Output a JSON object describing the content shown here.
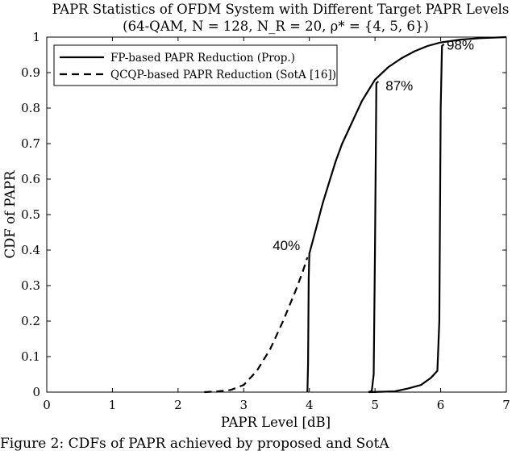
{
  "chart_data": {
    "type": "line",
    "title": "PAPR Statistics of OFDM System with Different Target PAPR Levels",
    "subtitle": "(64-QAM, N = 128, N_R = 20, ρ* = {4, 5, 6})",
    "xlabel": "PAPR Level [dB]",
    "ylabel": "CDF of PAPR",
    "xlim": [
      0,
      7
    ],
    "ylim": [
      0,
      1
    ],
    "xticks": [
      "0",
      "1",
      "2",
      "3",
      "4",
      "5",
      "6",
      "7"
    ],
    "yticks": [
      "0",
      "0.1",
      "0.2",
      "0.3",
      "0.4",
      "0.5",
      "0.6",
      "0.7",
      "0.8",
      "0.9",
      "1"
    ],
    "grid": false,
    "legend_position": "top-left",
    "series": [
      {
        "name": "FP-based PAPR Reduction (Prop.)",
        "style": "solid",
        "color": "#000000",
        "curves": [
          [
            [
              3.97,
              0
            ],
            [
              3.98,
              0.08
            ],
            [
              3.99,
              0.32
            ],
            [
              4.0,
              0.39
            ],
            [
              4.1,
              0.46
            ],
            [
              4.2,
              0.53
            ],
            [
              4.3,
              0.59
            ],
            [
              4.4,
              0.65
            ],
            [
              4.5,
              0.7
            ],
            [
              4.6,
              0.74
            ],
            [
              4.7,
              0.78
            ],
            [
              4.8,
              0.82
            ],
            [
              4.9,
              0.85
            ],
            [
              5.0,
              0.88
            ],
            [
              5.2,
              0.915
            ],
            [
              5.4,
              0.94
            ],
            [
              5.6,
              0.96
            ],
            [
              5.8,
              0.975
            ],
            [
              6.0,
              0.985
            ],
            [
              6.3,
              0.993
            ],
            [
              6.6,
              0.997
            ],
            [
              7.0,
              1.0
            ]
          ],
          [
            [
              4.9,
              0
            ],
            [
              4.95,
              0.003
            ],
            [
              4.98,
              0.05
            ],
            [
              5.0,
              0.4
            ],
            [
              5.02,
              0.87
            ],
            [
              5.05,
              0.875
            ]
          ],
          [
            [
              4.9,
              0
            ],
            [
              5.3,
              0.002
            ],
            [
              5.5,
              0.01
            ],
            [
              5.7,
              0.02
            ],
            [
              5.85,
              0.04
            ],
            [
              5.95,
              0.06
            ],
            [
              5.98,
              0.2
            ],
            [
              6.0,
              0.8
            ],
            [
              6.02,
              0.975
            ],
            [
              6.05,
              0.98
            ]
          ]
        ]
      },
      {
        "name": "QCQP-based PAPR Reduction (SotA [16])",
        "style": "dashed",
        "color": "#000000",
        "curves": [
          [
            [
              2.4,
              0
            ],
            [
              2.6,
              0.002
            ],
            [
              2.8,
              0.006
            ],
            [
              3.0,
              0.02
            ],
            [
              3.2,
              0.06
            ],
            [
              3.4,
              0.12
            ],
            [
              3.6,
              0.2
            ],
            [
              3.8,
              0.29
            ],
            [
              3.9,
              0.34
            ],
            [
              3.97,
              0.38
            ]
          ]
        ]
      }
    ],
    "annotations": [
      {
        "text": "40%",
        "x": 3.65,
        "y": 0.41
      },
      {
        "text": "87%",
        "x": 5.37,
        "y": 0.86
      },
      {
        "text": "98%",
        "x": 6.3,
        "y": 0.975
      }
    ]
  },
  "caption": "Figure 2: CDFs of PAPR achieved by proposed and SotA"
}
